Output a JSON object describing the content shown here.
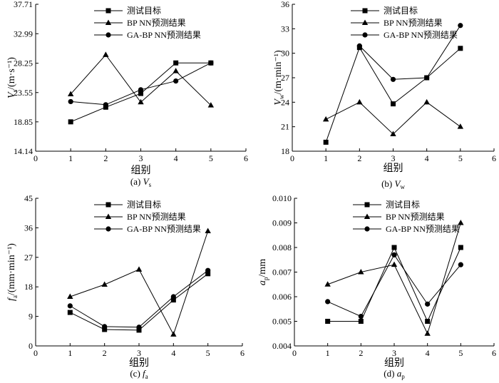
{
  "chart_data": [
    {
      "type": "line",
      "id": "vs",
      "caption": "(a) Vs",
      "caption_main": "V",
      "caption_sub": "s",
      "xlabel": "组别",
      "ylabel": "Vs/(m·s⁻¹)",
      "ylabel_main": "V",
      "ylabel_sub": "s",
      "ylabel_unit": "/(m·s⁻¹)",
      "xlim": [
        0,
        6
      ],
      "xticks": [
        "0",
        "1",
        "2",
        "3",
        "4",
        "5",
        "6"
      ],
      "ylim": [
        14.14,
        37.71
      ],
      "yticks": [
        "14.14",
        "18.85",
        "23.55",
        "28.25",
        "32.99",
        "37.71"
      ],
      "legend": "top-left",
      "x": [
        1,
        2,
        3,
        4,
        5
      ],
      "series": [
        {
          "name": "测试目标",
          "marker": "square",
          "values": [
            18.85,
            21.2,
            23.4,
            28.3,
            28.3
          ]
        },
        {
          "name": "BP NN预测结果",
          "marker": "triangle",
          "values": [
            23.3,
            29.6,
            22.0,
            27.0,
            21.5
          ]
        },
        {
          "name": "GA-BP NN预测结果",
          "marker": "circle",
          "values": [
            22.1,
            21.6,
            24.0,
            25.4,
            28.3
          ]
        }
      ]
    },
    {
      "type": "line",
      "id": "vw",
      "caption": "(b) Vw",
      "caption_main": "V",
      "caption_sub": "w",
      "xlabel": "组别",
      "ylabel": "Vw/(m·min⁻¹)",
      "ylabel_main": "V",
      "ylabel_sub": "w",
      "ylabel_unit": "/(m·min⁻¹)",
      "xlim": [
        0,
        6
      ],
      "xticks": [
        "0",
        "1",
        "2",
        "3",
        "4",
        "5",
        "6"
      ],
      "ylim": [
        18,
        36
      ],
      "yticks": [
        "18",
        "21",
        "24",
        "27",
        "30",
        "33",
        "36"
      ],
      "legend": "top-left",
      "x": [
        1,
        2,
        3,
        4,
        5
      ],
      "series": [
        {
          "name": "测试目标",
          "marker": "square",
          "values": [
            19.1,
            30.7,
            23.8,
            27.0,
            30.6
          ]
        },
        {
          "name": "BP NN预测结果",
          "marker": "triangle",
          "values": [
            21.9,
            24.0,
            20.1,
            24.0,
            21.0
          ]
        },
        {
          "name": "GA-BP NN预测结果",
          "marker": "circle",
          "values": [
            null,
            30.9,
            26.8,
            27.0,
            33.4
          ]
        }
      ]
    },
    {
      "type": "line",
      "id": "fa",
      "caption": "(c) fa",
      "caption_main": "f",
      "caption_sub": "a",
      "xlabel": "组别",
      "ylabel": "fa/(mm·min⁻¹)",
      "ylabel_main": "f",
      "ylabel_sub": "a",
      "ylabel_unit": "/(mm·min⁻¹)",
      "xlim": [
        0,
        6
      ],
      "xticks": [
        "0",
        "1",
        "2",
        "3",
        "4",
        "5",
        "6"
      ],
      "ylim": [
        0,
        45
      ],
      "yticks": [
        "0",
        "9",
        "18",
        "27",
        "36",
        "45"
      ],
      "legend": "top-left",
      "x": [
        1,
        2,
        3,
        4,
        5
      ],
      "series": [
        {
          "name": "测试目标",
          "marker": "square",
          "values": [
            10.2,
            5.0,
            4.8,
            14.0,
            22.0
          ]
        },
        {
          "name": "BP NN预测结果",
          "marker": "triangle",
          "values": [
            15.0,
            18.7,
            23.3,
            3.5,
            35.0
          ]
        },
        {
          "name": "GA-BP NN预测结果",
          "marker": "circle",
          "values": [
            12.2,
            5.9,
            5.7,
            15.0,
            23.0
          ]
        }
      ]
    },
    {
      "type": "line",
      "id": "ap",
      "caption": "(d) ap",
      "caption_main": "a",
      "caption_sub": "p",
      "xlabel": "组别",
      "ylabel": "ap/mm",
      "ylabel_main": "a",
      "ylabel_sub": "p",
      "ylabel_unit": "/mm",
      "xlim": [
        0,
        6
      ],
      "xticks": [
        "0",
        "1",
        "2",
        "3",
        "4",
        "5",
        "6"
      ],
      "ylim": [
        0.004,
        0.01
      ],
      "yticks": [
        "0.004",
        "0.005",
        "0.006",
        "0.007",
        "0.008",
        "0.009",
        "0.010"
      ],
      "legend": "top-left",
      "x": [
        1,
        2,
        3,
        4,
        5
      ],
      "series": [
        {
          "name": "测试目标",
          "marker": "square",
          "values": [
            0.005,
            0.005,
            0.008,
            0.005,
            0.008
          ]
        },
        {
          "name": "BP NN预测结果",
          "marker": "triangle",
          "values": [
            0.0065,
            0.007,
            0.0073,
            0.0045,
            0.009
          ]
        },
        {
          "name": "GA-BP NN预测结果",
          "marker": "circle",
          "values": [
            0.0058,
            0.0052,
            0.0077,
            0.0057,
            0.0073
          ]
        }
      ]
    }
  ]
}
